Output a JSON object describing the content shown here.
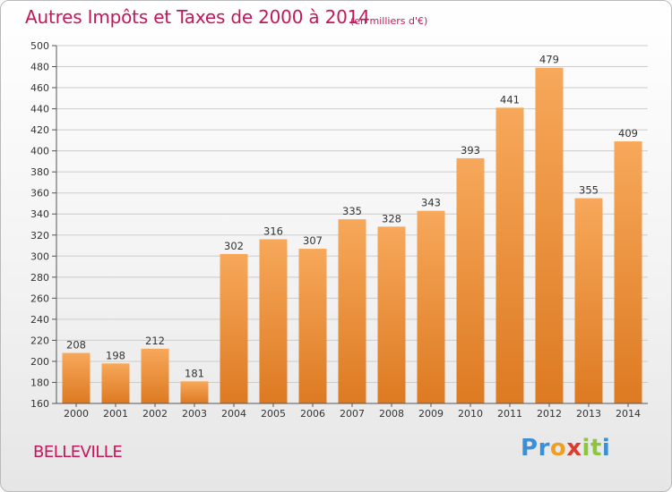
{
  "title": "Autres Impôts et Taxes de 2000 à 2014",
  "subtitle": "(en milliers d'€)",
  "place": "BELLEVILLE",
  "logo": {
    "text": "Proxiti",
    "letters": [
      {
        "ch": "P",
        "color": "#3b8fd6"
      },
      {
        "ch": "r",
        "color": "#3b8fd6"
      },
      {
        "ch": "o",
        "color": "#f0a020"
      },
      {
        "ch": "x",
        "color": "#e03a2f"
      },
      {
        "ch": "i",
        "color": "#8cc63f"
      },
      {
        "ch": "t",
        "color": "#8cc63f"
      },
      {
        "ch": "i",
        "color": "#3b8fd6"
      }
    ]
  },
  "colors": {
    "bar_light": "#f7a85a",
    "bar_dark": "#dd7a22",
    "title": "#c2185b",
    "grid": "#cccccc"
  },
  "chart_data": {
    "type": "bar",
    "title": "Autres Impôts et Taxes de 2000 à 2014",
    "subtitle": "(en milliers d'€)",
    "categories": [
      "2000",
      "2001",
      "2002",
      "2003",
      "2004",
      "2005",
      "2006",
      "2007",
      "2008",
      "2009",
      "2010",
      "2011",
      "2012",
      "2013",
      "2014"
    ],
    "values": [
      208,
      198,
      212,
      181,
      302,
      316,
      307,
      335,
      328,
      343,
      393,
      441,
      479,
      355,
      409
    ],
    "ylim": [
      160,
      500
    ],
    "yticks": [
      160,
      180,
      200,
      220,
      240,
      260,
      280,
      300,
      320,
      340,
      360,
      380,
      400,
      420,
      440,
      460,
      480,
      500
    ],
    "grid": true,
    "data_labels": true
  }
}
